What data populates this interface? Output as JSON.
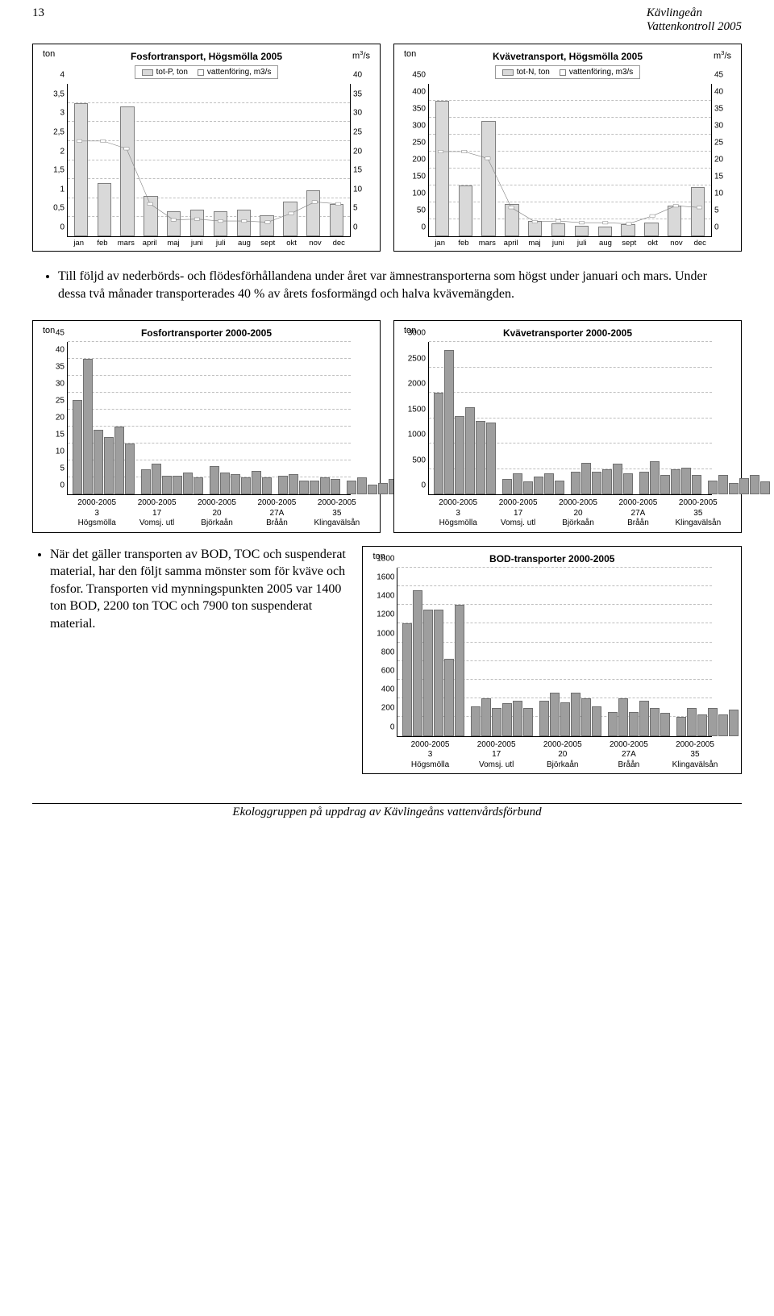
{
  "header": {
    "pagenum": "13",
    "title1": "Kävlingeån",
    "title2": "Vattenkontroll 2005"
  },
  "months": [
    "jan",
    "feb",
    "mars",
    "april",
    "maj",
    "juni",
    "juli",
    "aug",
    "sept",
    "okt",
    "nov",
    "dec"
  ],
  "chart1": {
    "title": "Fosfortransport, Högsmölla 2005",
    "unit_left": "ton",
    "unit_right": "m³/s",
    "legend": [
      "tot-P, ton",
      "vattenföring, m3/s"
    ],
    "ymax": 4.0,
    "ystep": 0.5,
    "y2max": 40.0,
    "y2step": 5.0,
    "bars": [
      3.5,
      1.4,
      3.4,
      1.05,
      0.65,
      0.7,
      0.65,
      0.7,
      0.55,
      0.9,
      1.2,
      0.85
    ],
    "line": [
      25,
      25,
      23,
      8.5,
      4.3,
      4.5,
      4.0,
      4.0,
      3.7,
      6.0,
      9.0,
      8.5
    ],
    "bar_color": "#d9d9d9",
    "line_color": "#808080",
    "bg": "#ffffff",
    "grid_color": "#bfbfbf"
  },
  "chart2": {
    "title": "Kvävetransport, Högsmölla 2005",
    "unit_left": "ton",
    "unit_right": "m³/s",
    "legend": [
      "tot-N, ton",
      "vattenföring, m3/s"
    ],
    "ymax": 450,
    "ystep": 50,
    "y2max": 45.0,
    "y2step": 5.0,
    "bars": [
      400,
      150,
      340,
      95,
      45,
      38,
      30,
      28,
      35,
      40,
      90,
      145
    ],
    "line": [
      25,
      25,
      23,
      8.5,
      4.3,
      4.5,
      4.0,
      4.0,
      3.7,
      6.0,
      9.0,
      8.5
    ],
    "bar_color": "#d9d9d9",
    "line_color": "#808080"
  },
  "bullet1": "Till följd av nederbörds- och flödesförhållandena under året var ämnestransporterna som högst under januari och mars. Under dessa två månader transporterades 40 % av årets fosformängd och halva kvävemängden.",
  "groups": [
    {
      "period": "2000-2005",
      "station": "3",
      "river": "Högsmölla"
    },
    {
      "period": "2000-2005",
      "station": "17",
      "river": "Vomsj. utl"
    },
    {
      "period": "2000-2005",
      "station": "20",
      "river": "Björkaån"
    },
    {
      "period": "2000-2005",
      "station": "27A",
      "river": "Bråån"
    },
    {
      "period": "2000-2005",
      "station": "35",
      "river": "Klingavälsån"
    }
  ],
  "chart3": {
    "title": "Fosfortransporter 2000-2005",
    "unit_left": "ton",
    "ymax": 45,
    "ystep": 5,
    "series": [
      [
        28,
        40,
        19,
        17,
        20,
        15
      ],
      [
        7.5,
        9,
        5.5,
        5.5,
        6.5,
        5
      ],
      [
        8.5,
        6.5,
        6,
        5,
        7,
        5
      ],
      [
        5.5,
        6,
        4,
        4,
        5,
        4.5
      ],
      [
        4,
        5,
        3,
        3.5,
        4.5,
        3
      ]
    ],
    "bar_color": "#9e9e9e"
  },
  "chart4": {
    "title": "Kvävetransporter 2000-2005",
    "unit_left": "ton",
    "ymax": 3000,
    "ystep": 500,
    "series": [
      [
        2000,
        2850,
        1550,
        1720,
        1450,
        1420
      ],
      [
        300,
        420,
        260,
        350,
        420,
        280
      ],
      [
        450,
        620,
        450,
        500,
        600,
        420
      ],
      [
        450,
        650,
        380,
        500,
        520,
        380
      ],
      [
        270,
        380,
        220,
        320,
        380,
        250
      ]
    ],
    "bar_color": "#9e9e9e"
  },
  "bullet2": "När det gäller transporten av BOD, TOC och suspenderat material, har den följt samma mönster som för kväve och fosfor. Transporten vid mynningspunkten 2005 var 1400 ton BOD, 2200 ton TOC och 7900 ton suspenderat material.",
  "chart5": {
    "title": "BOD-transporter 2000-2005",
    "unit_left": "ton",
    "ymax": 1800,
    "ystep": 200,
    "series": [
      [
        1200,
        1560,
        1350,
        1350,
        820,
        1400
      ],
      [
        320,
        400,
        300,
        350,
        380,
        300
      ],
      [
        380,
        460,
        360,
        460,
        400,
        320
      ],
      [
        260,
        400,
        260,
        380,
        300,
        250
      ],
      [
        200,
        300,
        230,
        300,
        230,
        280
      ]
    ],
    "bar_color": "#9e9e9e"
  },
  "footer": "Ekologgruppen på uppdrag av Kävlingeåns vattenvårdsförbund"
}
